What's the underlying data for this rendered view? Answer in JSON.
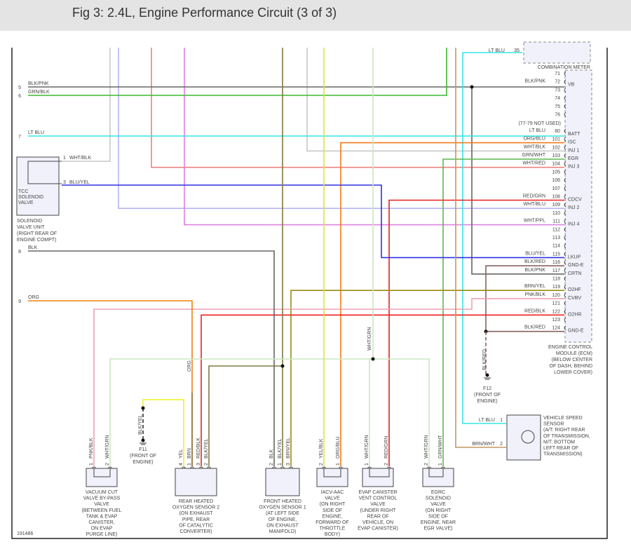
{
  "title": "Fig 3: 2.4L, Engine Performance Circuit (3 of 3)",
  "figure_id": "191486",
  "left_refs": [
    {
      "num": "5",
      "label": "BLK/PNK"
    },
    {
      "num": "6",
      "label": "GRN/BLK"
    },
    {
      "num": "7",
      "label": "LT BLU"
    },
    {
      "num": "8",
      "label": "BLK"
    },
    {
      "num": "9",
      "label": "ORG"
    }
  ],
  "combo_meter": {
    "name": "COMBINATION METER",
    "pin": "35",
    "wire": "LT BLU"
  },
  "ecm": {
    "name": [
      "ENGINE CONTROL",
      "MODULE (ECM)",
      "(BELOW CENTER",
      "OF DASH, BEHIND",
      "LOWER COVER)"
    ],
    "note": "(77-79 NOT USED)",
    "pins": [
      {
        "n": "71",
        "w": "",
        "f": ""
      },
      {
        "n": "72",
        "w": "BLK/PNK",
        "f": "VB"
      },
      {
        "n": "73",
        "w": "",
        "f": ""
      },
      {
        "n": "74",
        "w": "",
        "f": ""
      },
      {
        "n": "75",
        "w": "",
        "f": ""
      },
      {
        "n": "76",
        "w": "",
        "f": ""
      },
      {
        "n": "",
        "w": "",
        "f": ""
      },
      {
        "n": "80",
        "w": "LT BLU",
        "f": "BATT"
      },
      {
        "n": "101",
        "w": "ORG/BLU",
        "f": "ISC"
      },
      {
        "n": "102",
        "w": "WHT/BLK",
        "f": "INJ 1"
      },
      {
        "n": "103",
        "w": "GRN/WHT",
        "f": "EGR"
      },
      {
        "n": "104",
        "w": "WHT/RED",
        "f": "INJ 3"
      },
      {
        "n": "105",
        "w": "",
        "f": ""
      },
      {
        "n": "106",
        "w": "",
        "f": ""
      },
      {
        "n": "107",
        "w": "",
        "f": ""
      },
      {
        "n": "108",
        "w": "RED/GRN",
        "f": "CDCV"
      },
      {
        "n": "109",
        "w": "WHT/BLU",
        "f": "INJ 2"
      },
      {
        "n": "110",
        "w": "",
        "f": ""
      },
      {
        "n": "111",
        "w": "WHT/PPL",
        "f": "INJ 4"
      },
      {
        "n": "112",
        "w": "",
        "f": ""
      },
      {
        "n": "113",
        "w": "",
        "f": ""
      },
      {
        "n": "114",
        "w": "",
        "f": ""
      },
      {
        "n": "115",
        "w": "BLU/YEL",
        "f": "LKUP"
      },
      {
        "n": "116",
        "w": "BLK/RED",
        "f": "GND-E"
      },
      {
        "n": "117",
        "w": "BLK/PNK",
        "f": "CRTN"
      },
      {
        "n": "118",
        "w": "",
        "f": ""
      },
      {
        "n": "119",
        "w": "BRN/YEL",
        "f": "O2HF"
      },
      {
        "n": "120",
        "w": "PNK/BLK",
        "f": "CVBV"
      },
      {
        "n": "121",
        "w": "",
        "f": ""
      },
      {
        "n": "122",
        "w": "RED/BLK",
        "f": "O2HR"
      },
      {
        "n": "123",
        "w": "",
        "f": ""
      },
      {
        "n": "124",
        "w": "BLK/RED",
        "f": "GND-E"
      }
    ]
  },
  "tcc": {
    "inner": [
      "TCC",
      "SOLENOID",
      "VALVE"
    ],
    "name": [
      "SOLENOID",
      "VALVE UNIT",
      "(RIGHT REAR OF",
      "ENGINE COMPT)"
    ],
    "pins": [
      {
        "n": "1",
        "w": "WHT/BLK"
      },
      {
        "n": "3",
        "w": "BLU/YEL"
      }
    ]
  },
  "grounds": [
    {
      "id": "F11",
      "wire": "BLK/YEL",
      "loc": [
        "F11",
        "(FRONT OF",
        "ENGINE)"
      ]
    },
    {
      "id": "F12",
      "wire": "BLK/RED",
      "loc": [
        "F12",
        "(FRONT OF",
        "ENGINE)"
      ]
    }
  ],
  "vss": {
    "name": [
      "VEHICLE SPEED",
      "SENSOR",
      "(A/T: RIGHT REAR",
      "OF TRANSMISSION,",
      "M/T: BOTTOM",
      "LEFT REAR OF",
      "TRANSMISSION)"
    ],
    "pins": [
      {
        "n": "1",
        "w": "LT BLU"
      },
      {
        "n": "2",
        "w": "BRN/WHT"
      }
    ]
  },
  "components": [
    {
      "id": "vcut",
      "name": [
        "VACUUM CUT",
        "VALVE BY-PASS",
        "VALVE",
        "(BETWEEN FUEL",
        "TANK & EVAP",
        "CANISTER,",
        "ON EVAP",
        "PURGE LINE)"
      ],
      "pins": [
        {
          "n": "1",
          "w": "PNK/BLK"
        },
        {
          "n": "2",
          "w": "WHT/GRN"
        }
      ]
    },
    {
      "id": "rho2s",
      "name": [
        "REAR HEATED",
        "OXYGEN SENSOR 2",
        "(ON EXHAUST",
        "PIPE, REAR",
        "OF CATALYTIC",
        "CONVERTER)"
      ],
      "pins": [
        {
          "n": "4",
          "w": "YEL"
        },
        {
          "n": "1",
          "w": "BRN"
        },
        {
          "n": "3",
          "w": "RED/BLK"
        },
        {
          "n": "2",
          "w": "BLK/YEL"
        }
      ]
    },
    {
      "id": "fho2s",
      "name": [
        "FRONT HEATED",
        "OXYGEN SENSOR 1",
        "(AT LEFT SIDE",
        "OF ENGINE,",
        "ON EXHAUST",
        "MANIFOLD)"
      ],
      "pins": [
        {
          "n": "2",
          "w": "BLK"
        },
        {
          "n": "1",
          "w": "BLK/YEL"
        },
        {
          "n": "3",
          "w": "BRN/YEL"
        }
      ]
    },
    {
      "id": "iacv",
      "name": [
        "IACV-AAC",
        "VALVE",
        "(ON RIGHT",
        "SIDE OF",
        "ENGINE,",
        "FORWARD OF",
        "THROTTLE",
        "BODY)"
      ],
      "pins": [
        {
          "n": "2",
          "w": "YEL/BLK"
        },
        {
          "n": "1",
          "w": "ORG/BLU"
        }
      ]
    },
    {
      "id": "evap",
      "name": [
        "EVAP CANISTER",
        "VENT CONTROL",
        "VALVE",
        "(UNDER RIGHT",
        "REAR OF",
        "VEHICLE, ON",
        "EVAP CANISTER)"
      ],
      "pins": [
        {
          "n": "1",
          "w": "WHT/GRN"
        },
        {
          "n": "2",
          "w": "RED/GRN"
        }
      ]
    },
    {
      "id": "egrc",
      "name": [
        "EGRC",
        "SOLENOID",
        "VALVE",
        "(ON RIGHT",
        "SIDE OF",
        "ENGINE, NEAR",
        "EGR VALVE)"
      ],
      "pins": [
        {
          "n": "2",
          "w": "WHT/GRN"
        },
        {
          "n": "1",
          "w": "GRN/WHT"
        }
      ]
    }
  ],
  "wire_labels": {
    "org_vertical": "ORG",
    "wht_grn_vertical": "WHT/GRN"
  },
  "wire_colors": {
    "BLK/PNK": "#666666",
    "GRN/BLK": "#3cb832",
    "LT BLU": "#33e5e5",
    "ORG/BLU": "#f07a1a",
    "WHT/BLK": "#c8c8c8",
    "GRN/WHT": "#5cb84a",
    "WHT/RED": "#f08080",
    "RED/GRN": "#e82020",
    "WHT/BLU": "#b4b4f0",
    "WHT/PPL": "#e080e0",
    "BLU/YEL": "#3030e0",
    "BLK/RED": "#8a6060",
    "BRN/YEL": "#9a8a10",
    "PNK/BLK": "#f0a0b0",
    "RED/BLK": "#f02020",
    "BLK": "#666666",
    "ORG": "#f08010",
    "WHT/GRN": "#c8e8c0",
    "YEL": "#f0f020",
    "BRN": "#8a6020",
    "BLK/YEL": "#807840",
    "YEL/BLK": "#e0e040",
    "BRN/WHT": "#c09a60"
  }
}
